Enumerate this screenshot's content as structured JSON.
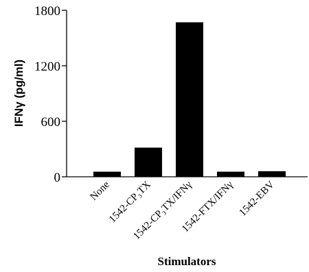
{
  "chart_data": {
    "type": "bar",
    "categories": [
      "None",
      "1542-CP₃TX",
      "1542-CP₃TX/IFNγ",
      "1542-FTX/IFNγ",
      "1542-EBV"
    ],
    "values": [
      55,
      315,
      1670,
      55,
      60
    ],
    "title": "",
    "xlabel": "Stimulators",
    "ylabel": "IFNγ (pg/ml)",
    "ylim": [
      0,
      1800
    ],
    "yticks": [
      0,
      600,
      1200,
      1800
    ],
    "grid": false,
    "legend": "none",
    "bar_color": "#000000"
  }
}
